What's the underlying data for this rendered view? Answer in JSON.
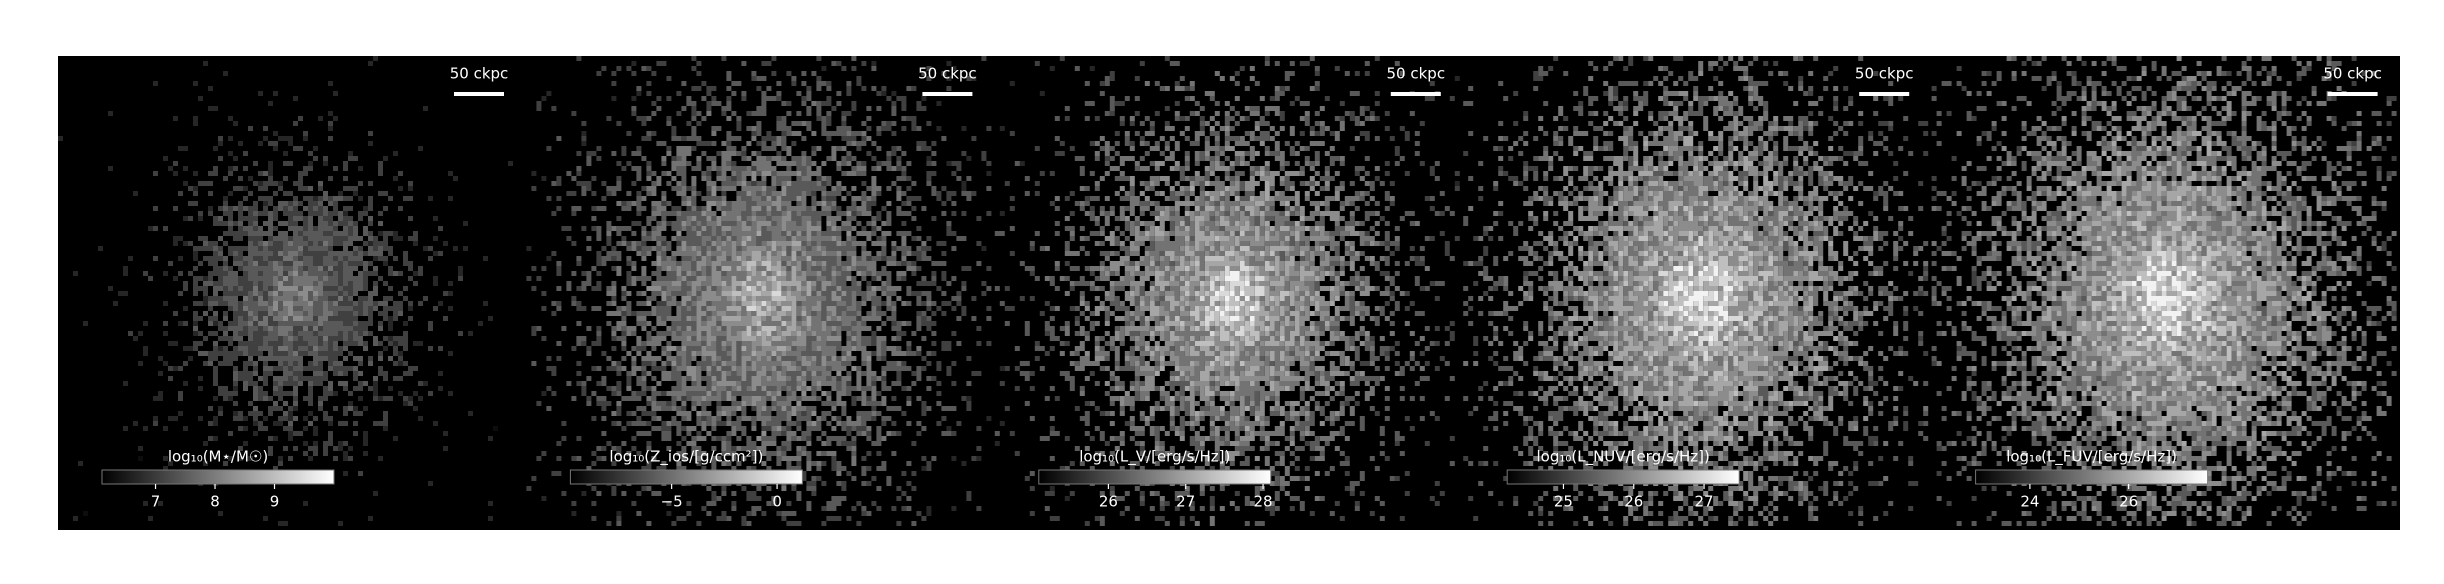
{
  "chart_data": [
    {
      "type": "image",
      "scalebar": "50 ckpc",
      "colorbar_label": "log₁₀(M⋆/M☉)",
      "clim": [
        6.1,
        10.0
      ],
      "cticks": [
        7,
        8,
        9
      ],
      "cmap": "gray"
    },
    {
      "type": "image",
      "scalebar": "50 ckpc",
      "colorbar_label": "log₁₀(Z_ios/[g/ccm²])",
      "clim": [
        -9.8,
        1.2
      ],
      "cticks": [
        {
          "value": -5,
          "label": "−5"
        },
        0
      ],
      "cmap": "gray"
    },
    {
      "type": "image",
      "scalebar": "50 ckpc",
      "colorbar_label": "log₁₀(L_V/[erg/s/Hz])",
      "clim": [
        25.1,
        28.1
      ],
      "cticks": [
        26,
        27,
        28
      ],
      "cmap": "gray"
    },
    {
      "type": "image",
      "scalebar": "50 ckpc",
      "colorbar_label": "log₁₀(L_NUV/[erg/s/Hz])",
      "clim": [
        24.2,
        27.5
      ],
      "cticks": [
        25,
        26,
        27
      ],
      "cmap": "gray"
    },
    {
      "type": "image",
      "scalebar": "50 ckpc",
      "colorbar_label": "log₁₀(L_FUV/[erg/s/Hz])",
      "clim": [
        22.9,
        27.6
      ],
      "cticks": [
        24,
        26
      ],
      "cmap": "gray"
    }
  ]
}
